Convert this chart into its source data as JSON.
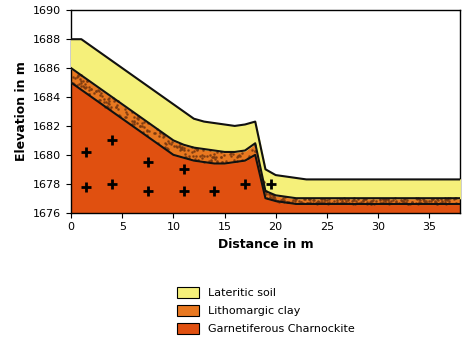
{
  "title": "",
  "xlabel": "Distance in m",
  "ylabel": "Elevation in m",
  "xlim": [
    0,
    38
  ],
  "ylim": [
    1676,
    1690
  ],
  "yticks": [
    1676,
    1678,
    1680,
    1682,
    1684,
    1686,
    1688,
    1690
  ],
  "xticks": [
    0,
    5,
    10,
    15,
    20,
    25,
    30,
    35
  ],
  "background_color": "#ffffff",
  "lateritic_color": "#f5f07a",
  "lithomargic_color": "#e87820",
  "charnockite_color": "#e05010",
  "line_color": "#111111",
  "top_surface_x": [
    0,
    1,
    2,
    3,
    4,
    5,
    6,
    7,
    8,
    9,
    10,
    11,
    12,
    13,
    14,
    15,
    16,
    17,
    18,
    19,
    20,
    21,
    22,
    23,
    24,
    25,
    26,
    27,
    28,
    29,
    30,
    31,
    38
  ],
  "top_surface_y": [
    1688,
    1688,
    1687.5,
    1687,
    1686.5,
    1686,
    1685.5,
    1685,
    1684.5,
    1684,
    1683.5,
    1683,
    1682.5,
    1682.3,
    1682.2,
    1682.1,
    1682.0,
    1682.1,
    1682.3,
    1679.0,
    1678.6,
    1678.5,
    1678.4,
    1678.3,
    1678.3,
    1678.3,
    1678.3,
    1678.3,
    1678.3,
    1678.3,
    1678.3,
    1678.3,
    1678.3
  ],
  "mid_surface_x": [
    0,
    1,
    2,
    3,
    4,
    5,
    6,
    7,
    8,
    9,
    10,
    11,
    12,
    13,
    14,
    15,
    16,
    17,
    18,
    19,
    20,
    21,
    22,
    23,
    24,
    25,
    26,
    27,
    28,
    29,
    30,
    31,
    38
  ],
  "mid_surface_y": [
    1686,
    1685.5,
    1685,
    1684.5,
    1684,
    1683.5,
    1683,
    1682.5,
    1682,
    1681.5,
    1681,
    1680.7,
    1680.5,
    1680.4,
    1680.3,
    1680.2,
    1680.2,
    1680.3,
    1680.8,
    1677.5,
    1677.2,
    1677.1,
    1677.0,
    1677.0,
    1677.0,
    1677.0,
    1677.0,
    1677.0,
    1677.0,
    1677.0,
    1677.0,
    1677.0,
    1677.0
  ],
  "bot_surface_x": [
    0,
    1,
    2,
    3,
    4,
    5,
    6,
    7,
    8,
    9,
    10,
    11,
    12,
    13,
    14,
    15,
    16,
    17,
    18,
    19,
    20,
    21,
    22,
    23,
    24,
    25,
    26,
    27,
    28,
    29,
    30,
    31,
    38
  ],
  "bot_surface_y": [
    1685,
    1684.5,
    1684,
    1683.5,
    1683,
    1682.5,
    1682,
    1681.5,
    1681,
    1680.5,
    1680,
    1679.8,
    1679.6,
    1679.5,
    1679.4,
    1679.4,
    1679.5,
    1679.6,
    1680.0,
    1677.0,
    1676.8,
    1676.7,
    1676.6,
    1676.6,
    1676.6,
    1676.6,
    1676.6,
    1676.6,
    1676.6,
    1676.6,
    1676.6,
    1676.6,
    1676.6
  ],
  "cross_positions": [
    [
      1.5,
      1680.2
    ],
    [
      1.5,
      1677.8
    ],
    [
      4.0,
      1681.0
    ],
    [
      4.0,
      1678.0
    ],
    [
      7.5,
      1679.5
    ],
    [
      7.5,
      1677.5
    ],
    [
      11.0,
      1679.0
    ],
    [
      11.0,
      1677.5
    ],
    [
      14.0,
      1677.5
    ],
    [
      17.0,
      1678.0
    ],
    [
      19.5,
      1678.0
    ]
  ]
}
